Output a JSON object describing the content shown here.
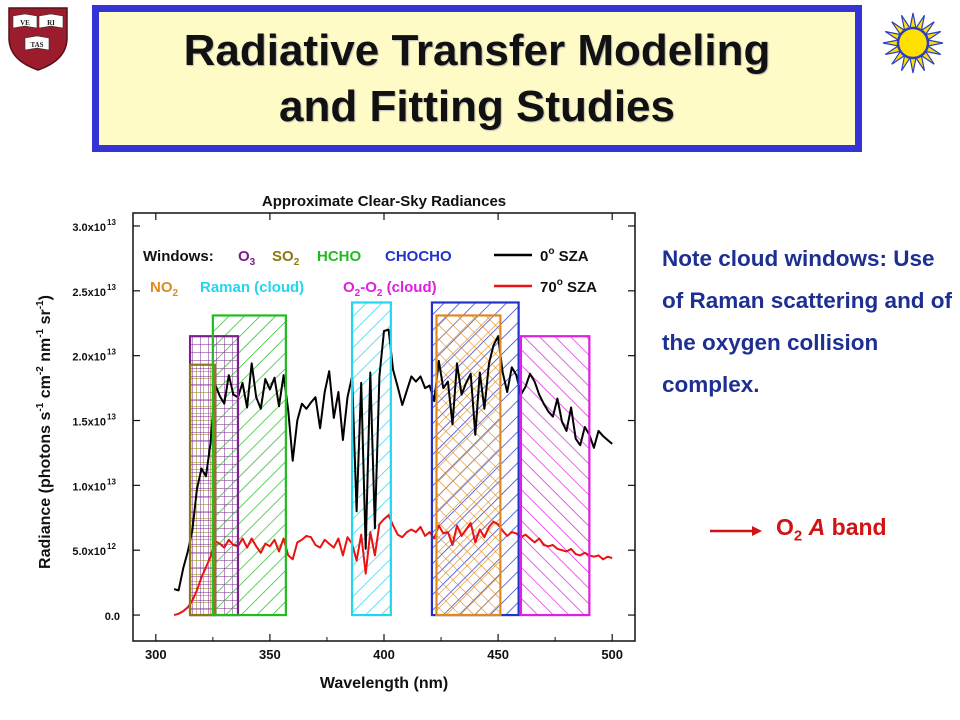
{
  "slide": {
    "title_line1": "Radiative Transfer Modeling",
    "title_line2": "and Fitting Studies",
    "note": "Note cloud windows: Use of Raman scattering and of the oxygen collision complex.",
    "o2_prefix": "O",
    "o2_sub": "2",
    "o2_a": "A",
    "o2_band": "band",
    "accent_color": "#3434d6",
    "title_bg": "#fffbc6",
    "note_color": "#1e2f92",
    "o2_color": "#d01313"
  },
  "logos": {
    "harvard_shield": {
      "texts": [
        "VE",
        "RI",
        "TAS"
      ]
    },
    "sao_sun": "sun-icon"
  },
  "chart_data": {
    "type": "line",
    "title": "Approximate Clear-Sky Radiances",
    "xlabel": "Wavelength (nm)",
    "ylabel": "Radiance (photons s-1 cm-2 nm-1 sr-1)",
    "xlim": [
      290,
      510
    ],
    "ylim": [
      -2000000000000.0,
      31000000000000.0
    ],
    "x_ticks": [
      300,
      350,
      400,
      450,
      500
    ],
    "y_ticks": [
      {
        "value": 0,
        "label": "0.0",
        "exp": ""
      },
      {
        "value": 5000000000000.0,
        "label": "5.0x10",
        "exp": "12"
      },
      {
        "value": 10000000000000.0,
        "label": "1.0x10",
        "exp": "13"
      },
      {
        "value": 15000000000000.0,
        "label": "1.5x10",
        "exp": "13"
      },
      {
        "value": 20000000000000.0,
        "label": "2.0x10",
        "exp": "13"
      },
      {
        "value": 25000000000000.0,
        "label": "2.5x10",
        "exp": "13"
      },
      {
        "value": 30000000000000.0,
        "label": "3.0x10",
        "exp": "13"
      }
    ],
    "grid": false,
    "legend_position": "top",
    "legend": {
      "windows_label": "Windows:",
      "line_entries": [
        {
          "deg": "0",
          "suffix": "SZA",
          "color": "#000000"
        },
        {
          "deg": "70",
          "suffix": "SZA",
          "color": "#ee1111"
        }
      ],
      "window_entries": [
        {
          "name": "O",
          "sub": "3",
          "color": "#7a1f8c"
        },
        {
          "name": "SO",
          "sub": "2",
          "color": "#8a7a12"
        },
        {
          "name": "HCHO",
          "sub": "",
          "color": "#22bb22"
        },
        {
          "name": "CHOCHO",
          "sub": "",
          "color": "#2233cc"
        },
        {
          "name": "NO",
          "sub": "2",
          "color": "#e08a1e"
        },
        {
          "name": "Raman (cloud)",
          "sub": "",
          "color": "#22d6f0"
        },
        {
          "name": "O2-O2 (cloud)",
          "sub": "",
          "color": "#e020e0"
        }
      ]
    },
    "windows": [
      {
        "name": "O3",
        "x0": 315,
        "x1": 336,
        "y0": 0,
        "y1": 21500000000000.0,
        "color": "#7a1f8c",
        "pattern": "grid"
      },
      {
        "name": "SO2",
        "x0": 315,
        "x1": 326,
        "y0": 0,
        "y1": 19300000000000.0,
        "color": "#8a7a12",
        "pattern": "grid"
      },
      {
        "name": "HCHO",
        "x0": 325,
        "x1": 357,
        "y0": 0,
        "y1": 23100000000000.0,
        "color": "#22bb22",
        "pattern": "diag"
      },
      {
        "name": "Raman (cloud)",
        "x0": 386,
        "x1": 403,
        "y0": 0,
        "y1": 24100000000000.0,
        "color": "#22d6f0",
        "pattern": "diag"
      },
      {
        "name": "CHOCHO",
        "x0": 421,
        "x1": 459,
        "y0": 0,
        "y1": 24100000000000.0,
        "color": "#2233cc",
        "pattern": "diag"
      },
      {
        "name": "NO2",
        "x0": 423,
        "x1": 451,
        "y0": 0,
        "y1": 23100000000000.0,
        "color": "#e08a1e",
        "pattern": "cross"
      },
      {
        "name": "O2-O2 (cloud)",
        "x0": 460,
        "x1": 490,
        "y0": 0,
        "y1": 21500000000000.0,
        "color": "#e020e0",
        "pattern": "diag_rev"
      }
    ],
    "series": [
      {
        "name": "0° SZA",
        "color": "#000000",
        "x": [
          308,
          310,
          312,
          314,
          316,
          318,
          320,
          322,
          324,
          326,
          328,
          330,
          332,
          334,
          336,
          338,
          340,
          342,
          344,
          346,
          348,
          350,
          352,
          354,
          356,
          358,
          360,
          362,
          364,
          366,
          368,
          370,
          372,
          374,
          376,
          378,
          380,
          382,
          384,
          386,
          388,
          390,
          392,
          394,
          396,
          398,
          400,
          402,
          404,
          406,
          408,
          410,
          412,
          414,
          416,
          418,
          420,
          422,
          424,
          426,
          428,
          430,
          432,
          434,
          436,
          438,
          440,
          442,
          444,
          446,
          448,
          450,
          452,
          454,
          456,
          458,
          460,
          462,
          464,
          466,
          468,
          470,
          472,
          474,
          476,
          478,
          480,
          482,
          484,
          486,
          488,
          490,
          492,
          494,
          496,
          498,
          500
        ],
        "values": [
          2000000000000.0,
          1900000000000.0,
          3600000000000.0,
          4900000000000.0,
          6500000000000.0,
          9700000000000.0,
          11300000000000.0,
          10700000000000.0,
          13300000000000.0,
          17800000000000.0,
          16900000000000.0,
          16300000000000.0,
          18500000000000.0,
          17000000000000.0,
          16800000000000.0,
          17900000000000.0,
          16000000000000.0,
          19400000000000.0,
          16800000000000.0,
          15900000000000.0,
          18200000000000.0,
          17400000000000.0,
          18300000000000.0,
          16100000000000.0,
          18500000000000.0,
          15800000000000.0,
          11900000000000.0,
          15000000000000.0,
          16300000000000.0,
          15900000000000.0,
          16400000000000.0,
          16800000000000.0,
          14400000000000.0,
          17200000000000.0,
          18800000000000.0,
          15200000000000.0,
          17200000000000.0,
          13500000000000.0,
          16800000000000.0,
          18400000000000.0,
          8000000000000.0,
          17900000000000.0,
          5100000000000.0,
          18700000000000.0,
          6700000000000.0,
          18400000000000.0,
          21900000000000.0,
          22000000000000.0,
          18900000000000.0,
          17600000000000.0,
          16200000000000.0,
          17300000000000.0,
          18400000000000.0,
          18000000000000.0,
          18400000000000.0,
          17500000000000.0,
          17700000000000.0,
          16500000000000.0,
          19600000000000.0,
          17500000000000.0,
          18000000000000.0,
          14700000000000.0,
          19400000000000.0,
          17000000000000.0,
          17900000000000.0,
          18600000000000.0,
          13900000000000.0,
          18700000000000.0,
          15900000000000.0,
          19400000000000.0,
          20800000000000.0,
          21500000000000.0,
          18700000000000.0,
          17200000000000.0,
          19100000000000.0,
          18500000000000.0,
          17000000000000.0,
          17600000000000.0,
          18600000000000.0,
          18000000000000.0,
          17000000000000.0,
          16300000000000.0,
          15700000000000.0,
          15300000000000.0,
          16700000000000.0,
          14900000000000.0,
          14200000000000.0,
          16000000000000.0,
          13600000000000.0,
          13100000000000.0,
          14500000000000.0,
          13900000000000.0,
          12900000000000.0,
          14200000000000.0,
          13800000000000.0,
          13500000000000.0,
          13200000000000.0
        ]
      },
      {
        "name": "70° SZA",
        "color": "#ee1111",
        "x": [
          308,
          310,
          312,
          314,
          316,
          318,
          320,
          322,
          324,
          326,
          328,
          330,
          332,
          334,
          336,
          338,
          340,
          342,
          344,
          346,
          348,
          350,
          352,
          354,
          356,
          358,
          360,
          362,
          364,
          366,
          368,
          370,
          372,
          374,
          376,
          378,
          380,
          382,
          384,
          386,
          388,
          390,
          392,
          394,
          396,
          398,
          400,
          402,
          404,
          406,
          408,
          410,
          412,
          414,
          416,
          418,
          420,
          422,
          424,
          426,
          428,
          430,
          432,
          434,
          436,
          438,
          440,
          442,
          444,
          446,
          448,
          450,
          452,
          454,
          456,
          458,
          460,
          462,
          464,
          466,
          468,
          470,
          472,
          474,
          476,
          478,
          480,
          482,
          484,
          486,
          488,
          490,
          492,
          494,
          496,
          498,
          500
        ],
        "values": [
          0,
          100000000000.0,
          300000000000.0,
          600000000000.0,
          1100000000000.0,
          1900000000000.0,
          2900000000000.0,
          3700000000000.0,
          4500000000000.0,
          5700000000000.0,
          5500000000000.0,
          5200000000000.0,
          5800000000000.0,
          5400000000000.0,
          5300000000000.0,
          5900000000000.0,
          5200000000000.0,
          5900000000000.0,
          5300000000000.0,
          4800000000000.0,
          5500000000000.0,
          5300000000000.0,
          5800000000000.0,
          4900000000000.0,
          5900000000000.0,
          4600000000000.0,
          4300000000000.0,
          5600000000000.0,
          5800000000000.0,
          6100000000000.0,
          6000000000000.0,
          5400000000000.0,
          5200000000000.0,
          5800000000000.0,
          5500000000000.0,
          5200000000000.0,
          5900000000000.0,
          4600000000000.0,
          6000000000000.0,
          5500000000000.0,
          4200000000000.0,
          6200000000000.0,
          3200000000000.0,
          6400000000000.0,
          4600000000000.0,
          7000000000000.0,
          7400000000000.0,
          7700000000000.0,
          6900000000000.0,
          6200000000000.0,
          6000000000000.0,
          6400000000000.0,
          6600000000000.0,
          6400000000000.0,
          6800000000000.0,
          6100000000000.0,
          6400000000000.0,
          5900000000000.0,
          6900000000000.0,
          6300000000000.0,
          6400000000000.0,
          5400000000000.0,
          6900000000000.0,
          6100000000000.0,
          6600000000000.0,
          7100000000000.0,
          5600000000000.0,
          6600000000000.0,
          6000000000000.0,
          6800000000000.0,
          7200000000000.0,
          7000000000000.0,
          6500000000000.0,
          6100000000000.0,
          6400000000000.0,
          6300000000000.0,
          6000000000000.0,
          6200000000000.0,
          5900000000000.0,
          5600000000000.0,
          5900000000000.0,
          5400000000000.0,
          5300000000000.0,
          5400000000000.0,
          5100000000000.0,
          5000000000000.0,
          4900000000000.0,
          5100000000000.0,
          4700000000000.0,
          4600000000000.0,
          4800000000000.0,
          4600000000000.0,
          4500000000000.0,
          4600000000000.0,
          4300000000000.0,
          4500000000000.0,
          4400000000000.0
        ]
      }
    ]
  }
}
